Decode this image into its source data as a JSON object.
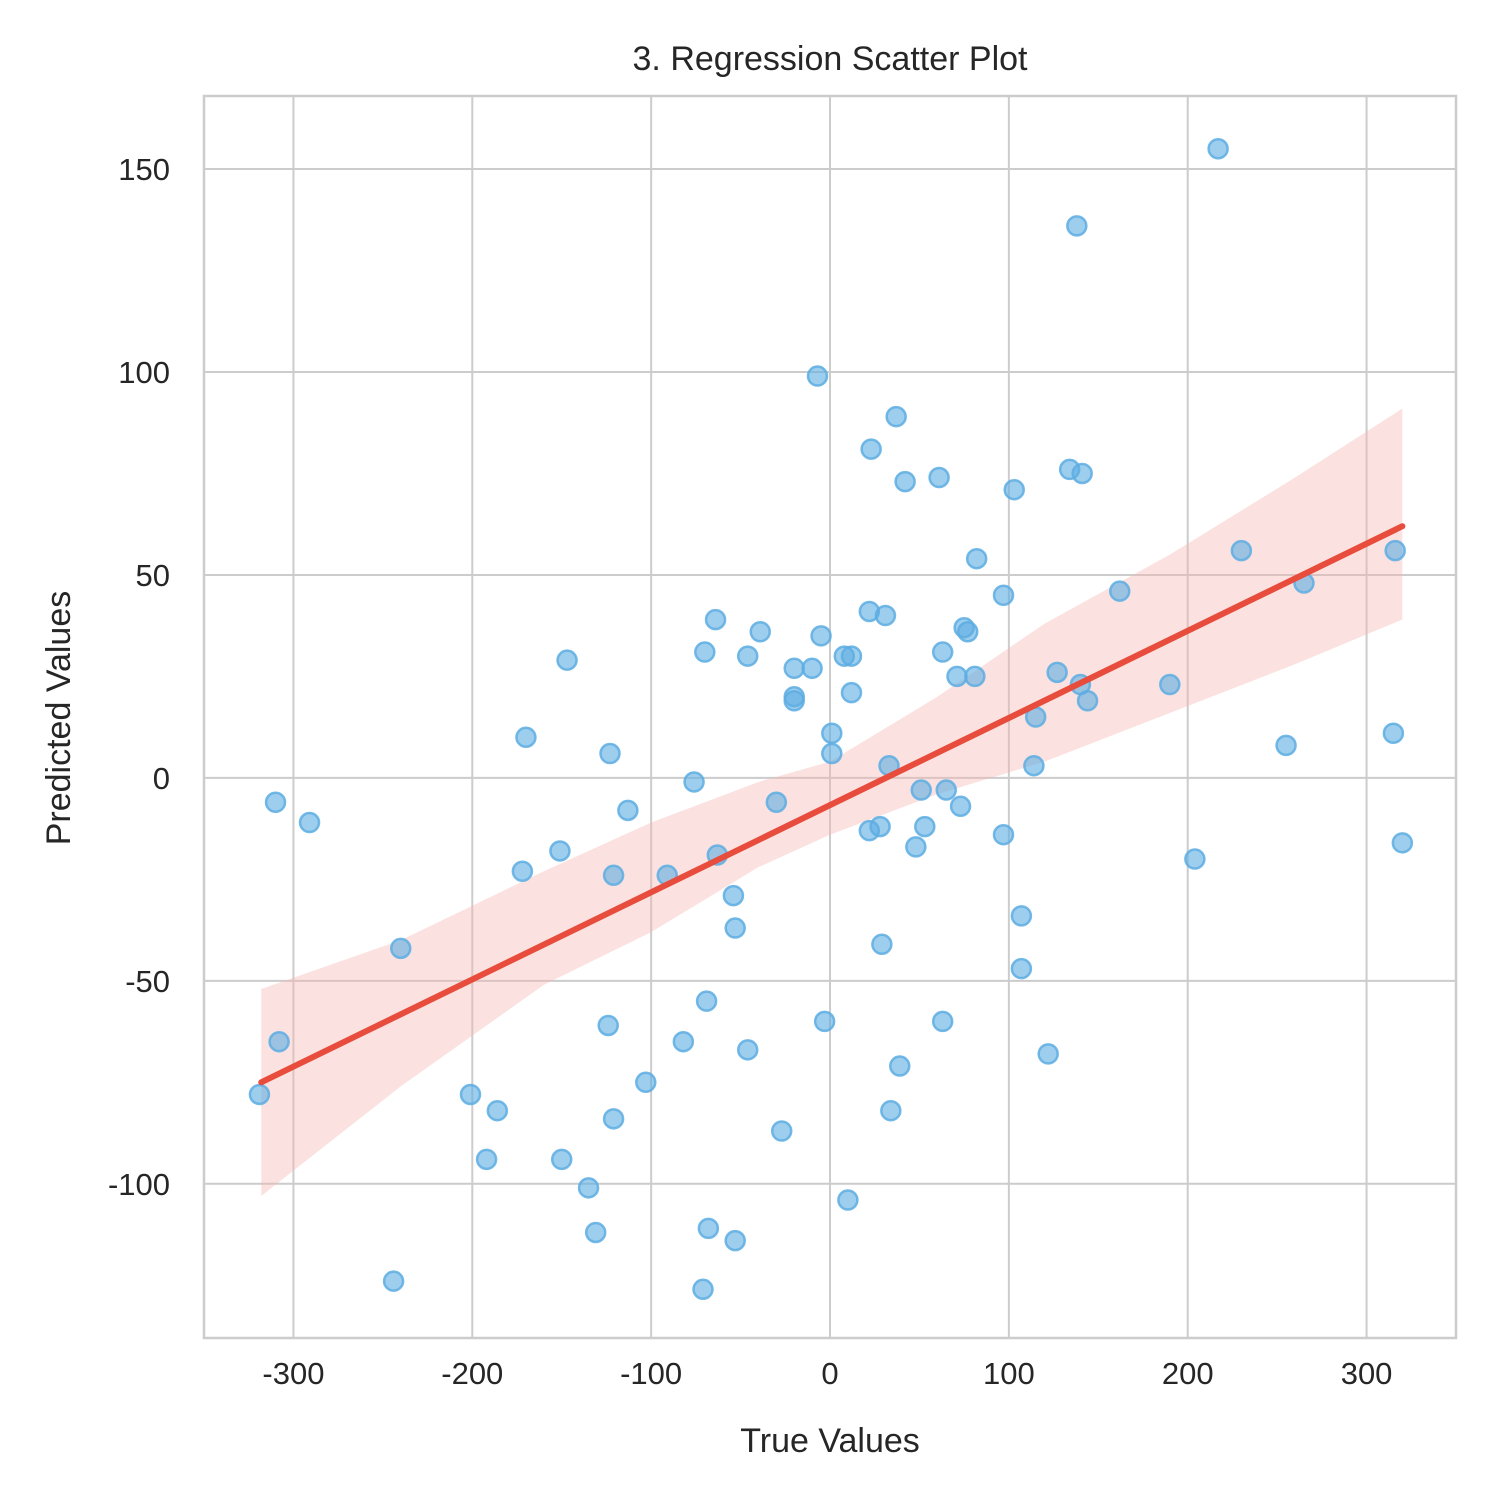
{
  "chart_data": {
    "type": "scatter",
    "title": "3. Regression Scatter Plot",
    "xlabel": "True Values",
    "ylabel": "Predicted Values",
    "xlim": [
      -350,
      350
    ],
    "ylim": [
      -138,
      168
    ],
    "xticks": [
      -300,
      -200,
      -100,
      0,
      100,
      200,
      300
    ],
    "yticks": [
      -100,
      -50,
      0,
      50,
      100,
      150
    ],
    "xtick_labels": [
      "-300",
      "-200",
      "-100",
      "0",
      "100",
      "200",
      "300"
    ],
    "ytick_labels": [
      "-100",
      "-50",
      "0",
      "50",
      "100",
      "150"
    ],
    "grid": true,
    "legend": "none",
    "colors": {
      "points": "#5dade2",
      "regression_line": "#e74c3c",
      "confidence_band": "#f5b7b1",
      "grid": "#cccccc",
      "spine": "#cccccc"
    },
    "points": [
      [
        -319,
        -78
      ],
      [
        -310,
        -6
      ],
      [
        -308,
        -65
      ],
      [
        -291,
        -11
      ],
      [
        -244,
        -124
      ],
      [
        -240,
        -42
      ],
      [
        -201,
        -78
      ],
      [
        -192,
        -94
      ],
      [
        -186,
        -82
      ],
      [
        -172,
        -23
      ],
      [
        -170,
        10
      ],
      [
        -151,
        -18
      ],
      [
        -150,
        -94
      ],
      [
        -147,
        29
      ],
      [
        -135,
        -101
      ],
      [
        -131,
        -112
      ],
      [
        -124,
        -61
      ],
      [
        -123,
        6
      ],
      [
        -121,
        -84
      ],
      [
        -121,
        -24
      ],
      [
        -113,
        -8
      ],
      [
        -103,
        -75
      ],
      [
        -91,
        -24
      ],
      [
        -82,
        -65
      ],
      [
        -76,
        -1
      ],
      [
        -70,
        31
      ],
      [
        -69,
        -55
      ],
      [
        -68,
        -111
      ],
      [
        -71,
        -126
      ],
      [
        -64,
        39
      ],
      [
        -63,
        -19
      ],
      [
        -54,
        -29
      ],
      [
        -53,
        -37
      ],
      [
        -53,
        -114
      ],
      [
        -46,
        -67
      ],
      [
        -46,
        30
      ],
      [
        -39,
        36
      ],
      [
        -30,
        -6
      ],
      [
        -27,
        -87
      ],
      [
        -20,
        27
      ],
      [
        -20,
        20
      ],
      [
        -20,
        19
      ],
      [
        -10,
        27
      ],
      [
        -7,
        99
      ],
      [
        -5,
        35
      ],
      [
        -3,
        -60
      ],
      [
        1,
        11
      ],
      [
        1,
        6
      ],
      [
        8,
        30
      ],
      [
        10,
        -104
      ],
      [
        12,
        30
      ],
      [
        12,
        21
      ],
      [
        22,
        41
      ],
      [
        22,
        -13
      ],
      [
        23,
        81
      ],
      [
        28,
        -12
      ],
      [
        29,
        -41
      ],
      [
        31,
        40
      ],
      [
        33,
        3
      ],
      [
        34,
        -82
      ],
      [
        37,
        89
      ],
      [
        39,
        -71
      ],
      [
        42,
        73
      ],
      [
        48,
        -17
      ],
      [
        51,
        -3
      ],
      [
        53,
        -12
      ],
      [
        61,
        74
      ],
      [
        63,
        31
      ],
      [
        63,
        -60
      ],
      [
        65,
        -3
      ],
      [
        71,
        25
      ],
      [
        73,
        -7
      ],
      [
        75,
        37
      ],
      [
        77,
        36
      ],
      [
        81,
        25
      ],
      [
        82,
        54
      ],
      [
        97,
        45
      ],
      [
        97,
        -14
      ],
      [
        103,
        71
      ],
      [
        107,
        -47
      ],
      [
        107,
        -34
      ],
      [
        114,
        3
      ],
      [
        115,
        15
      ],
      [
        122,
        -68
      ],
      [
        127,
        26
      ],
      [
        134,
        76
      ],
      [
        138,
        136
      ],
      [
        140,
        23
      ],
      [
        141,
        75
      ],
      [
        144,
        19
      ],
      [
        162,
        46
      ],
      [
        190,
        23
      ],
      [
        204,
        -20
      ],
      [
        217,
        155
      ],
      [
        230,
        56
      ],
      [
        255,
        8
      ],
      [
        265,
        48
      ],
      [
        315,
        11
      ],
      [
        316,
        56
      ],
      [
        320,
        -16
      ]
    ],
    "regression_line": {
      "x": [
        -318,
        320
      ],
      "y": [
        -75,
        62
      ]
    },
    "confidence_band": {
      "x": [
        -318,
        -240,
        -160,
        -100,
        -40,
        0,
        60,
        120,
        190,
        260,
        320
      ],
      "lower": [
        -103,
        -76,
        -51,
        -38,
        -22,
        -14,
        -4,
        4,
        16,
        28,
        39
      ],
      "upper": [
        -52,
        -40,
        -23,
        -11,
        -1,
        4,
        20,
        38,
        55,
        74,
        91
      ]
    }
  }
}
